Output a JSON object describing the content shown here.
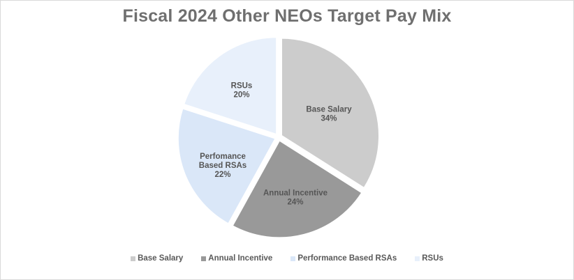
{
  "chart_data": {
    "type": "pie",
    "title": "Fiscal 2024 Other NEOs Target Pay Mix",
    "legend_position": "bottom",
    "slices": [
      {
        "label": "Base Salary",
        "chart_label": [
          "Base Salary",
          "34%"
        ],
        "value": 34,
        "display": "34%",
        "color": "#cccccc"
      },
      {
        "label": "Annual Incentive",
        "chart_label": [
          "Annual Incentive",
          "24%"
        ],
        "value": 24,
        "display": "24%",
        "color": "#999999"
      },
      {
        "label": "Performance Based RSAs",
        "chart_label": [
          "Perfomance",
          "Based RSAs",
          "22%"
        ],
        "value": 22,
        "display": "22%",
        "color": "#dae7f8"
      },
      {
        "label": "RSUs",
        "chart_label": [
          "RSUs",
          "20%"
        ],
        "value": 20,
        "display": "20%",
        "color": "#e8f0fb"
      }
    ]
  }
}
